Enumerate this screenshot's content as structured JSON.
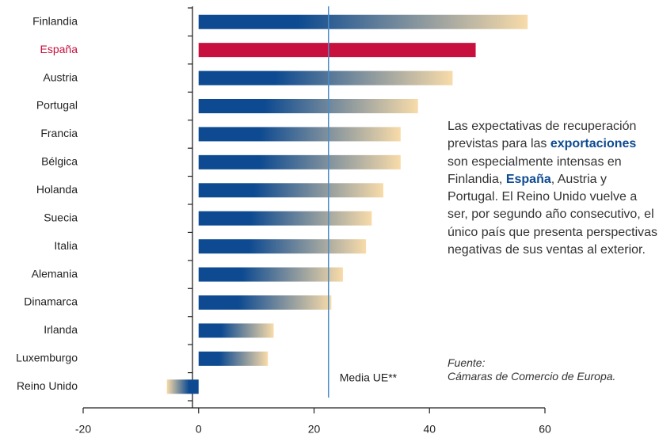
{
  "chart_data": {
    "type": "hbar",
    "categories": [
      "Finlandia",
      "España",
      "Austria",
      "Portugal",
      "Francia",
      "Bélgica",
      "Holanda",
      "Suecia",
      "Italia",
      "Alemania",
      "Dinamarca",
      "Irlanda",
      "Luxemburgo",
      "Reino Unido"
    ],
    "values": [
      57,
      48,
      44,
      38,
      35,
      35,
      32,
      30,
      29,
      25,
      23,
      13,
      12,
      -5.5
    ],
    "colors": [
      "#0d4a91",
      "#c8103e",
      "#0d4a91",
      "#0d4a91",
      "#0d4a91",
      "#0d4a91",
      "#0d4a91",
      "#0d4a91",
      "#0d4a91",
      "#0d4a91",
      "#0d4a91",
      "#0d4a91",
      "#0d4a91",
      "#0d4a91"
    ],
    "gradient_to": "#f8dba9",
    "xlim": [
      -20,
      60
    ],
    "xticks": [
      -20,
      0,
      20,
      40,
      60
    ],
    "reference_line": {
      "value": 22.5,
      "label": "Media UE**",
      "color": "#4a8cc8"
    },
    "annotation": [
      "Las expectativas de recuperación previstas para las ",
      "exportaciones",
      " son especialmente intensas en Finlandia, ",
      "España",
      ", Austria y Portugal. El Reino Unido vuelve a ser, por segundo año consecutivo, el único país que presenta perspectivas negativas de sus ventas al exterior."
    ],
    "source": [
      "Fuente:",
      "Cámaras de Comercio de Europa."
    ]
  }
}
